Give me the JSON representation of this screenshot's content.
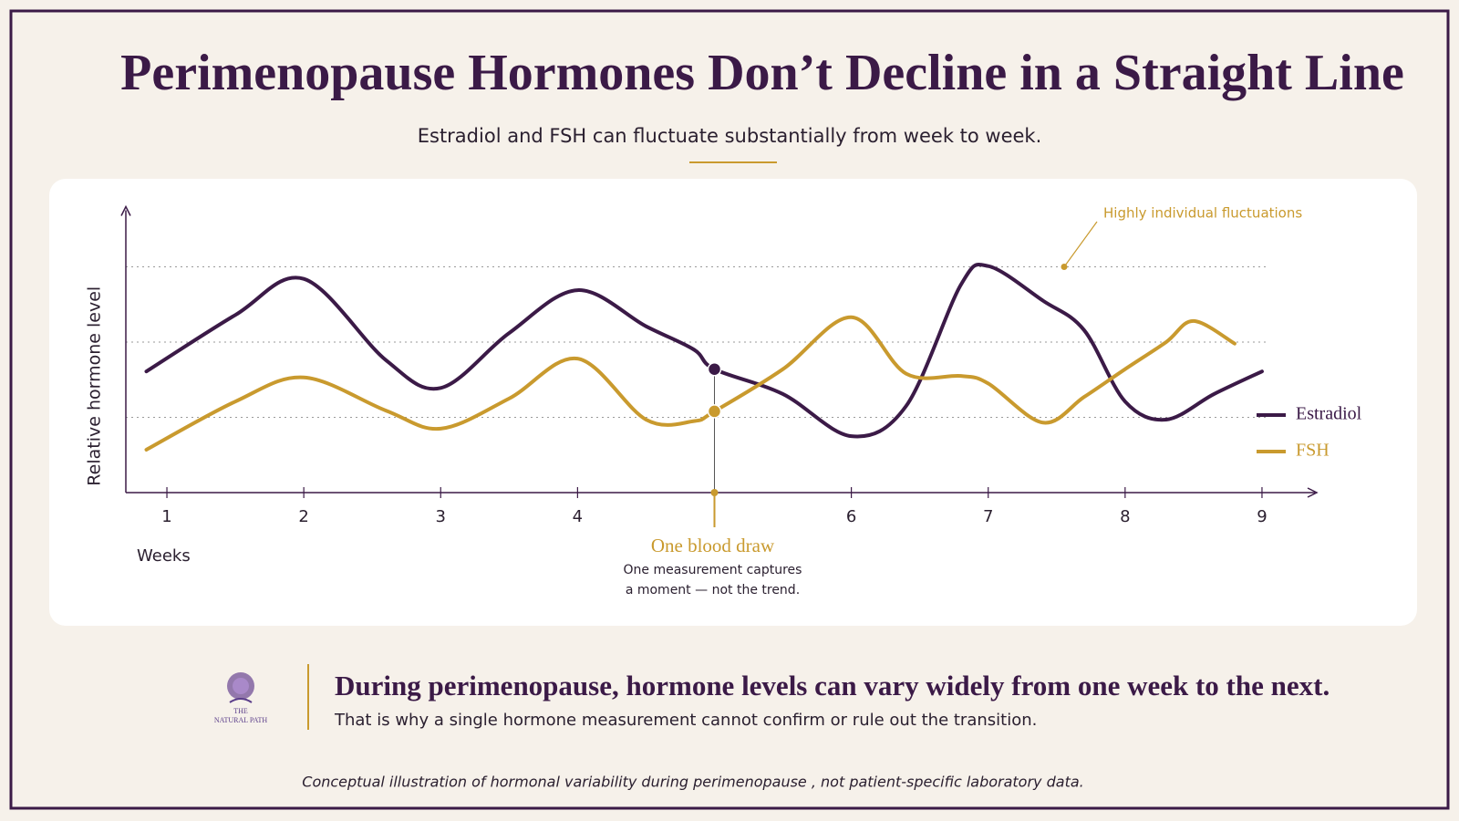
{
  "header": {
    "title": "Perimenopause Hormones Don’t Decline in a Straight Line",
    "subtitle": "Estradiol and FSH can fluctuate substantially from week to week."
  },
  "chart_data": {
    "type": "line",
    "y_label": "Relative hormone level",
    "x_label": "Weeks",
    "xlim": [
      0.7,
      9.4
    ],
    "xticks": [
      1,
      2,
      3,
      4,
      6,
      7,
      8,
      9
    ],
    "ylim": [
      0,
      3.8
    ],
    "ygrid": [
      1,
      2,
      3
    ],
    "grid": true,
    "legend": "right",
    "series": [
      {
        "name": "Estradiol",
        "color": "#3b1a47",
        "x": [
          0.85,
          1.5,
          2,
          2.6,
          3,
          3.5,
          4,
          4.5,
          4.85,
          5,
          5.5,
          6,
          6.4,
          6.8,
          7,
          7.4,
          7.7,
          8,
          8.3,
          8.65,
          9
        ],
        "values": [
          1.61,
          2.36,
          2.84,
          1.76,
          1.39,
          2.12,
          2.69,
          2.21,
          1.9,
          1.64,
          1.31,
          0.75,
          1.15,
          2.76,
          3.01,
          2.55,
          2.16,
          1.21,
          0.97,
          1.31,
          1.61
        ]
      },
      {
        "name": "FSH",
        "color": "#c99a2e",
        "x": [
          0.85,
          1.5,
          2,
          2.6,
          3,
          3.5,
          4,
          4.5,
          4.85,
          5,
          5.5,
          6,
          6.4,
          6.8,
          7,
          7.4,
          7.7,
          8,
          8.3,
          8.5,
          8.8
        ],
        "values": [
          0.57,
          1.21,
          1.53,
          1.09,
          0.85,
          1.25,
          1.78,
          0.97,
          0.95,
          1.08,
          1.64,
          2.33,
          1.58,
          1.55,
          1.45,
          0.93,
          1.27,
          1.64,
          2.0,
          2.28,
          1.98
        ]
      }
    ],
    "annotation": "Highly individual fluctuations",
    "blood_draw": {
      "x": 5,
      "label": "One blood draw",
      "note": [
        "One measurement captures",
        "a moment — not the trend."
      ]
    }
  },
  "logo": {
    "lines": [
      "THE",
      "NATURAL PATH"
    ]
  },
  "takeaway": {
    "heading": "During perimenopause, hormone levels can vary widely from one week to the next.",
    "text": "That is why a single hormone measurement cannot confirm or rule out the transition."
  },
  "footnote": "Conceptual illustration of hormonal variability during perimenopause , not patient-specific laboratory data."
}
